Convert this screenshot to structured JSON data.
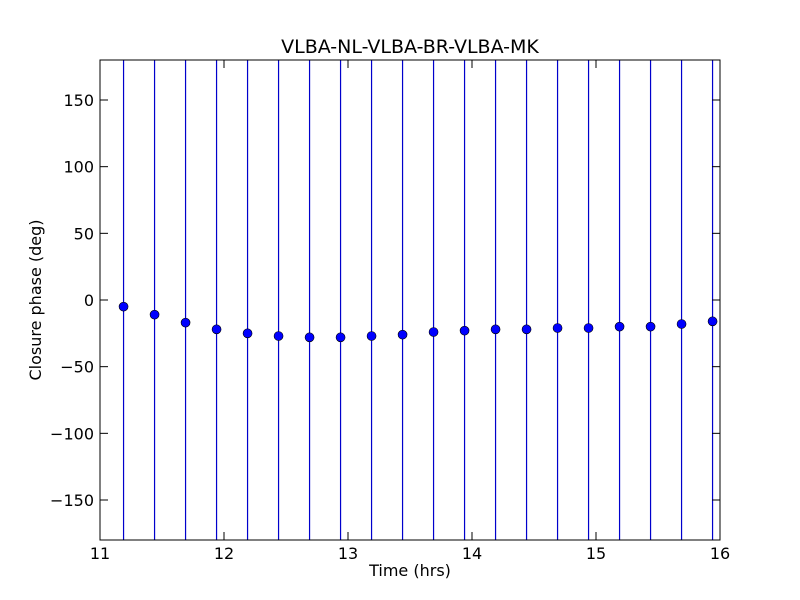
{
  "chart_data": {
    "type": "scatter",
    "title": "VLBA-NL-VLBA-BR-VLBA-MK",
    "xlabel": "Time (hrs)",
    "ylabel": "Closure phase (deg)",
    "xlim": [
      11,
      16
    ],
    "ylim": [
      -180,
      180
    ],
    "xticks": [
      11,
      12,
      13,
      14,
      15,
      16
    ],
    "xtick_labels": [
      "11",
      "12",
      "13",
      "14",
      "15",
      "16"
    ],
    "yticks": [
      -150,
      -100,
      -50,
      0,
      50,
      100,
      150
    ],
    "ytick_labels": [
      "−150",
      "−100",
      "−50",
      "0",
      "50",
      "100",
      "150"
    ],
    "grid": false,
    "marker_color": "#0000ff",
    "errorbar_color": "#0000cc",
    "points": [
      {
        "x": 11.19,
        "y": -5,
        "err_low": -180,
        "err_high": 180
      },
      {
        "x": 11.44,
        "y": -11,
        "err_low": -180,
        "err_high": 180
      },
      {
        "x": 11.69,
        "y": -17,
        "err_low": -180,
        "err_high": 180
      },
      {
        "x": 11.94,
        "y": -22,
        "err_low": -180,
        "err_high": 180
      },
      {
        "x": 12.19,
        "y": -25,
        "err_low": -180,
        "err_high": 180
      },
      {
        "x": 12.44,
        "y": -27,
        "err_low": -180,
        "err_high": 180
      },
      {
        "x": 12.69,
        "y": -28,
        "err_low": -180,
        "err_high": 180
      },
      {
        "x": 12.94,
        "y": -28,
        "err_low": -180,
        "err_high": 180
      },
      {
        "x": 13.19,
        "y": -27,
        "err_low": -180,
        "err_high": 180
      },
      {
        "x": 13.44,
        "y": -26,
        "err_low": -180,
        "err_high": 180
      },
      {
        "x": 13.69,
        "y": -24,
        "err_low": -180,
        "err_high": 180
      },
      {
        "x": 13.94,
        "y": -23,
        "err_low": -180,
        "err_high": 180
      },
      {
        "x": 14.19,
        "y": -22,
        "err_low": -180,
        "err_high": 180
      },
      {
        "x": 14.44,
        "y": -22,
        "err_low": -180,
        "err_high": 180
      },
      {
        "x": 14.69,
        "y": -21,
        "err_low": -180,
        "err_high": 180
      },
      {
        "x": 14.94,
        "y": -21,
        "err_low": -180,
        "err_high": 180
      },
      {
        "x": 15.19,
        "y": -20,
        "err_low": -180,
        "err_high": 180
      },
      {
        "x": 15.44,
        "y": -20,
        "err_low": -180,
        "err_high": 180
      },
      {
        "x": 15.69,
        "y": -18,
        "err_low": -180,
        "err_high": 180
      },
      {
        "x": 15.94,
        "y": -16,
        "err_low": -180,
        "err_high": 180
      }
    ]
  }
}
